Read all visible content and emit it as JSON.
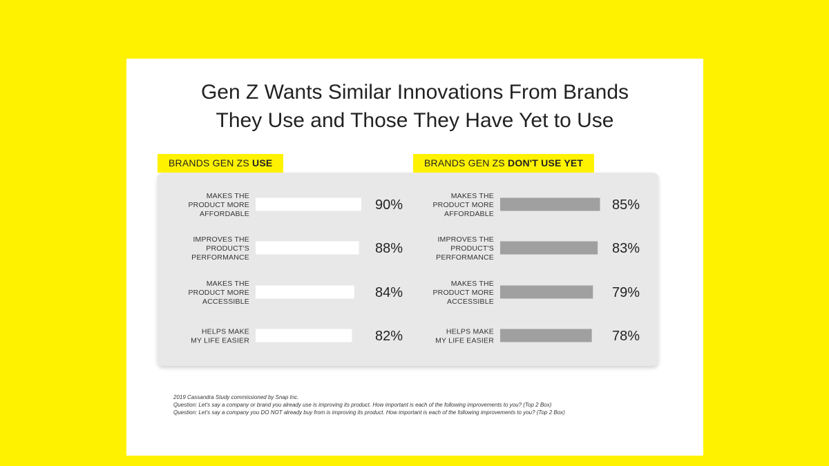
{
  "title_lines": [
    "Gen Z Wants Similar Innovations From Brands",
    "They Use and Those They Have Yet to Use"
  ],
  "panels": [
    {
      "tag_prefix": "BRANDS GEN ZS ",
      "tag_bold": "USE"
    },
    {
      "tag_prefix": "BRANDS GEN ZS ",
      "tag_bold": "DON'T USE YET"
    }
  ],
  "colors": {
    "background": "#fff200",
    "panel": "#e8e8e8",
    "use_bar": "#ffffff",
    "dont_use_bar": "#a0a0a0"
  },
  "footnotes": [
    "2019 Cassandra Study commissioned by Snap Inc.",
    "Question: Let's say a company or brand you already use is improving its product. How important is each of the following improvements to you? (Top 2 Box)",
    "Question: Let's say a company you DO NOT already buy from is improving its product. How important is each of the following improvements to you? (Top 2 Box)"
  ],
  "chart_data": [
    {
      "type": "bar",
      "orientation": "horizontal",
      "title": "BRANDS GEN ZS USE",
      "categories": [
        [
          "MAKES THE",
          "PRODUCT MORE",
          "AFFORDABLE"
        ],
        [
          "IMPROVES THE",
          "PRODUCT'S",
          "PERFORMANCE"
        ],
        [
          "MAKES THE",
          "PRODUCT MORE",
          "ACCESSIBLE"
        ],
        [
          "HELPS MAKE",
          "MY LIFE EASIER"
        ]
      ],
      "values": [
        90,
        88,
        84,
        82
      ],
      "value_labels": [
        "90%",
        "88%",
        "84%",
        "82%"
      ],
      "unit": "%",
      "color": "#ffffff"
    },
    {
      "type": "bar",
      "orientation": "horizontal",
      "title": "BRANDS GEN ZS DON'T USE YET",
      "categories": [
        [
          "MAKES THE",
          "PRODUCT MORE",
          "AFFORDABLE"
        ],
        [
          "IMPROVES THE",
          "PRODUCT'S",
          "PERFORMANCE"
        ],
        [
          "MAKES THE",
          "PRODUCT MORE",
          "ACCESSIBLE"
        ],
        [
          "HELPS MAKE",
          "MY LIFE EASIER"
        ]
      ],
      "values": [
        85,
        83,
        79,
        78
      ],
      "value_labels": [
        "85%",
        "83%",
        "79%",
        "78%"
      ],
      "unit": "%",
      "color": "#a0a0a0"
    }
  ]
}
